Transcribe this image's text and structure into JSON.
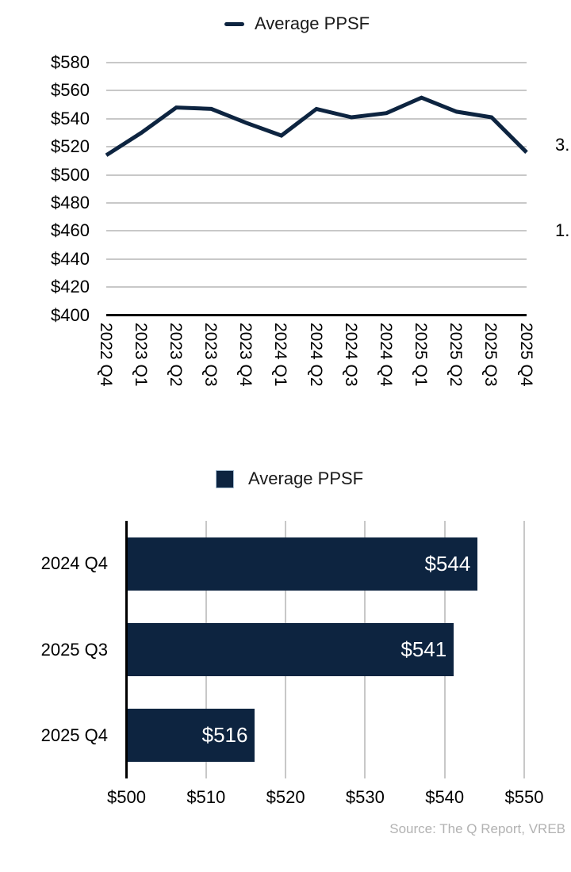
{
  "colors": {
    "navy": "#0d2440",
    "gridline": "#c8c8c8",
    "axis": "#000000",
    "bar_value_text": "#ffffff",
    "source_text": "#b2b2b2",
    "legend_swatch_border": "#a9c0d4"
  },
  "chart_data": [
    {
      "type": "line",
      "title": "",
      "legend": [
        "Average PPSF"
      ],
      "legend_position": "top-center",
      "x": [
        "2022 Q4",
        "2023 Q1",
        "2023 Q2",
        "2023 Q3",
        "2023 Q4",
        "2024 Q1",
        "2024 Q2",
        "2024 Q3",
        "2024 Q4",
        "2025 Q1",
        "2025 Q2",
        "2025 Q3",
        "2025 Q4"
      ],
      "series": [
        {
          "name": "Average PPSF",
          "values": [
            514,
            530,
            548,
            547,
            537,
            528,
            547,
            541,
            544,
            555,
            545,
            541,
            516
          ]
        }
      ],
      "ylim": [
        400,
        580
      ],
      "ytick_step": 20,
      "ytick_prefix": "$",
      "grid": "horizontal",
      "line_color": "#0d2440",
      "clipped_right_labels": [
        "3.",
        "1."
      ]
    },
    {
      "type": "bar",
      "orientation": "horizontal",
      "title": "",
      "legend": [
        "Average PPSF"
      ],
      "legend_position": "top-center",
      "categories": [
        "2024 Q4",
        "2025 Q3",
        "2025 Q4"
      ],
      "series": [
        {
          "name": "Average PPSF",
          "values": [
            544,
            541,
            516
          ]
        }
      ],
      "value_labels": [
        "$544",
        "$541",
        "$516"
      ],
      "xlim": [
        500,
        550
      ],
      "xtick_step": 10,
      "xtick_prefix": "$",
      "xtick_labels": [
        "$500",
        "$510",
        "$520",
        "$530",
        "$540",
        "$550"
      ],
      "grid": "vertical",
      "bar_color": "#0d2440",
      "source": "Source: The Q Report, VREB"
    }
  ]
}
